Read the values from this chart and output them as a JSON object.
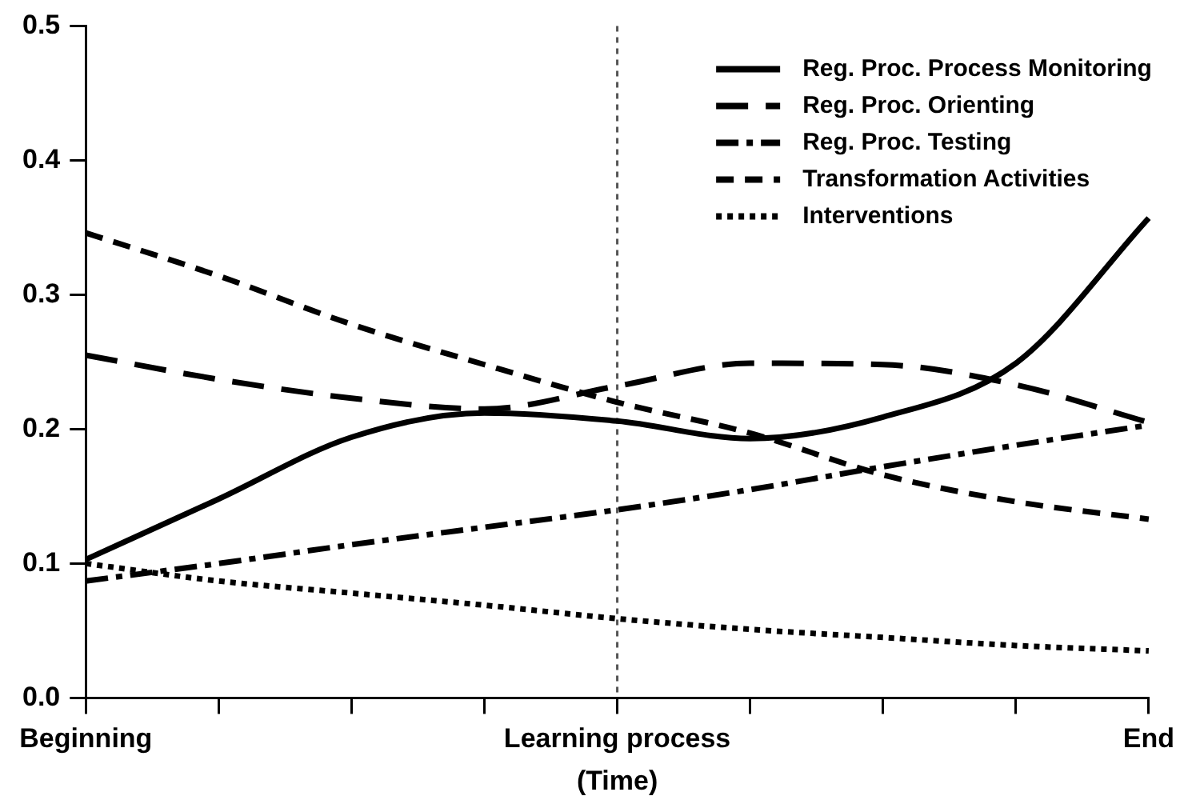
{
  "chart_data": {
    "type": "line",
    "xlabel": "(Time)",
    "categories": [
      "Beginning",
      null,
      null,
      null,
      "Learning process",
      null,
      null,
      null,
      "End"
    ],
    "ylim": [
      0,
      0.5
    ],
    "yticks": [
      {
        "value": 0,
        "label": "0.0"
      },
      0.1,
      0.2,
      0.3,
      0.4,
      0.5
    ],
    "series": [
      {
        "name": "Reg. Proc. Process Monitoring",
        "color": "#000000",
        "line_style": "solid",
        "values": [
          0.103,
          0.148,
          0.194,
          0.212,
          0.206,
          0.193,
          0.209,
          0.249,
          0.357
        ]
      },
      {
        "name": "Reg. Proc. Orienting",
        "color": "#000000",
        "line_style": "longdash",
        "values": [
          0.255,
          0.237,
          0.223,
          0.215,
          0.232,
          0.249,
          0.248,
          0.233,
          0.205
        ]
      },
      {
        "name": "Reg. Proc. Testing",
        "color": "#000000",
        "line_style": "dashdot",
        "values": [
          0.087,
          0.1,
          0.114,
          0.127,
          0.14,
          0.155,
          0.172,
          0.188,
          0.203
        ]
      },
      {
        "name": "Transformation Activities",
        "color": "#000000",
        "line_style": "dashed",
        "values": [
          0.346,
          0.314,
          0.278,
          0.248,
          0.22,
          0.197,
          0.166,
          0.146,
          0.133
        ]
      },
      {
        "name": "Interventions",
        "color": "#000000",
        "line_style": "dotted",
        "values": [
          0.1,
          0.087,
          0.078,
          0.069,
          0.059,
          0.051,
          0.045,
          0.039,
          0.035
        ]
      }
    ],
    "ref_lines": [
      {
        "axis": "x",
        "value": "Learning process",
        "color": "#555555",
        "line_style": "dotted"
      }
    ],
    "grid": false,
    "legend": "top right",
    "marker": "none"
  }
}
